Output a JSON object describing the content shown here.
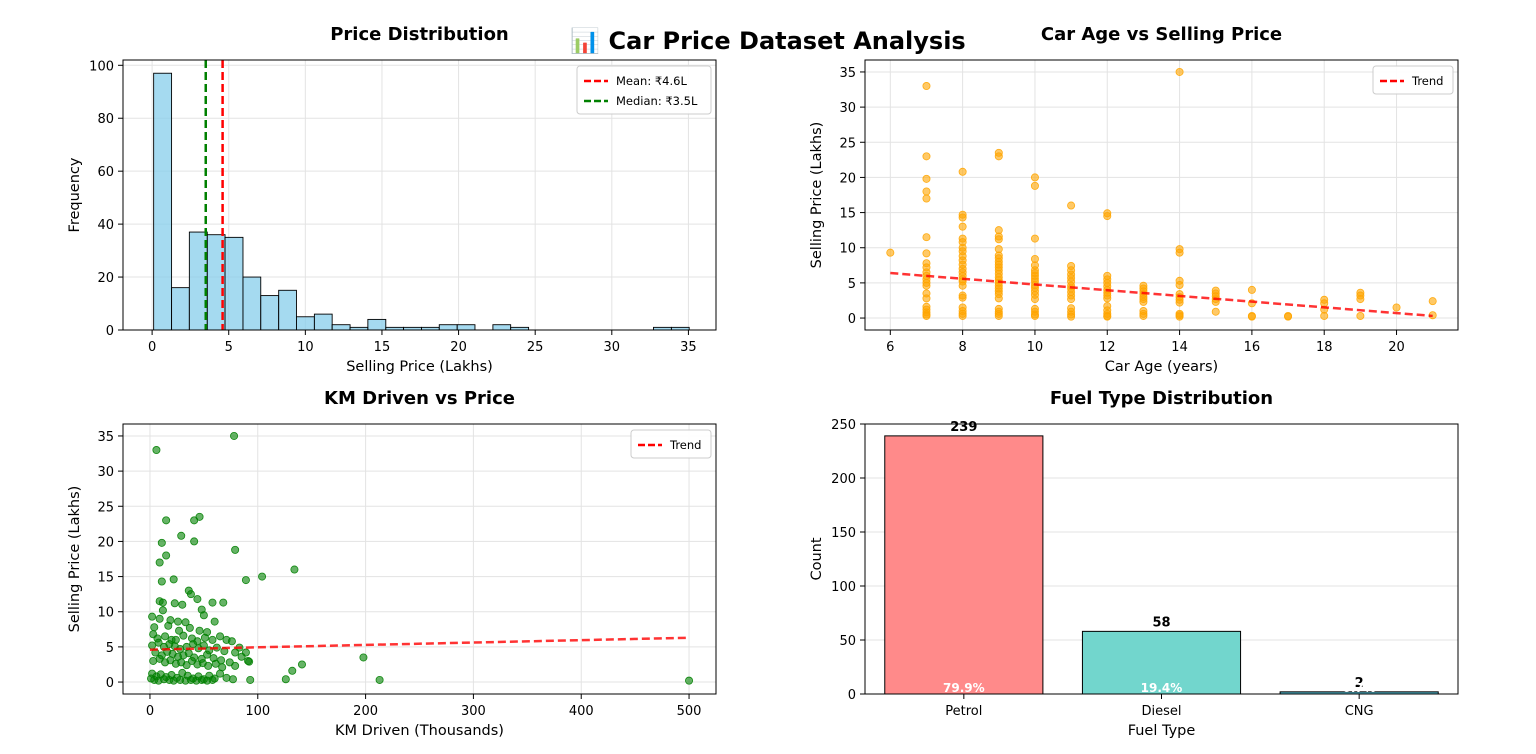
{
  "suptitle": "📊 Car Price Dataset Analysis",
  "chart_data": [
    {
      "type": "histogram",
      "title": "Price Distribution",
      "xlabel": "Selling Price (Lakhs)",
      "ylabel": "Frequency",
      "xlim": [
        -1.9,
        36.8
      ],
      "ylim": [
        0,
        102
      ],
      "xticks": [
        0,
        5,
        10,
        15,
        20,
        25,
        30,
        35
      ],
      "yticks": [
        0,
        20,
        40,
        60,
        80,
        100
      ],
      "bin_edges": [
        0.1,
        1.27,
        2.43,
        3.6,
        4.76,
        5.93,
        7.09,
        8.26,
        9.42,
        10.59,
        11.75,
        12.92,
        14.08,
        15.25,
        16.41,
        17.58,
        18.74,
        19.91,
        21.07,
        22.24,
        23.4,
        24.57,
        25.73,
        26.9,
        28.06,
        29.23,
        30.39,
        31.56,
        32.72,
        33.89,
        35.05
      ],
      "counts": [
        97,
        16,
        37,
        36,
        35,
        20,
        13,
        15,
        5,
        6,
        2,
        1,
        4,
        1,
        1,
        1,
        2,
        2,
        0,
        2,
        1,
        0,
        0,
        0,
        0,
        0,
        0,
        0,
        1,
        1
      ],
      "bar_color": "#87ceeb",
      "vlines": [
        {
          "label": "Mean: ₹4.6L",
          "x": 4.6,
          "color": "#ff0000"
        },
        {
          "label": "Median: ₹3.5L",
          "x": 3.5,
          "color": "#008000"
        }
      ],
      "legend_position": "upper right",
      "grid": true
    },
    {
      "type": "scatter",
      "title": "Car Age vs Selling Price",
      "xlabel": "Car Age (years)",
      "ylabel": "Selling Price (Lakhs)",
      "xlim": [
        5.3,
        21.7
      ],
      "ylim": [
        -1.7,
        36.7
      ],
      "xticks": [
        6,
        8,
        10,
        12,
        14,
        16,
        18,
        20
      ],
      "yticks": [
        0,
        5,
        10,
        15,
        20,
        25,
        30,
        35
      ],
      "point_color": "#ffa500",
      "points": [
        [
          6,
          9.3
        ],
        [
          7,
          33
        ],
        [
          7,
          23
        ],
        [
          7,
          19.8
        ],
        [
          7,
          18
        ],
        [
          7,
          17
        ],
        [
          7,
          11.5
        ],
        [
          7,
          9.2
        ],
        [
          7,
          7.8
        ],
        [
          7,
          7.2
        ],
        [
          7,
          6.5
        ],
        [
          7,
          6
        ],
        [
          7,
          5.5
        ],
        [
          7,
          5
        ],
        [
          7,
          4.6
        ],
        [
          7,
          3.5
        ],
        [
          7,
          2.8
        ],
        [
          7,
          1.6
        ],
        [
          7,
          1.2
        ],
        [
          7,
          0.8
        ],
        [
          7,
          0.5
        ],
        [
          7,
          0.3
        ],
        [
          8,
          20.8
        ],
        [
          8,
          14.7
        ],
        [
          8,
          14.3
        ],
        [
          8,
          13
        ],
        [
          8,
          11.3
        ],
        [
          8,
          10.8
        ],
        [
          8,
          10
        ],
        [
          8,
          9.5
        ],
        [
          8,
          8.8
        ],
        [
          8,
          8.2
        ],
        [
          8,
          7.6
        ],
        [
          8,
          7
        ],
        [
          8,
          6.5
        ],
        [
          8,
          6
        ],
        [
          8,
          5.5
        ],
        [
          8,
          5.2
        ],
        [
          8,
          4.6
        ],
        [
          8,
          3.2
        ],
        [
          8,
          2.9
        ],
        [
          8,
          1.5
        ],
        [
          8,
          1
        ],
        [
          8,
          0.6
        ],
        [
          8,
          0.3
        ],
        [
          9,
          23.5
        ],
        [
          9,
          23
        ],
        [
          9,
          12.5
        ],
        [
          9,
          11.6
        ],
        [
          9,
          11.2
        ],
        [
          9,
          9.8
        ],
        [
          9,
          8.9
        ],
        [
          9,
          8.5
        ],
        [
          9,
          8
        ],
        [
          9,
          7.6
        ],
        [
          9,
          7.2
        ],
        [
          9,
          6.8
        ],
        [
          9,
          6.3
        ],
        [
          9,
          5.8
        ],
        [
          9,
          5.4
        ],
        [
          9,
          5
        ],
        [
          9,
          4.6
        ],
        [
          9,
          4.2
        ],
        [
          9,
          3.8
        ],
        [
          9,
          3.4
        ],
        [
          9,
          2.8
        ],
        [
          9,
          1.3
        ],
        [
          9,
          0.9
        ],
        [
          9,
          0.6
        ],
        [
          9,
          0.3
        ],
        [
          10,
          20
        ],
        [
          10,
          18.8
        ],
        [
          10,
          11.3
        ],
        [
          10,
          8.4
        ],
        [
          10,
          7.5
        ],
        [
          10,
          6.8
        ],
        [
          10,
          6.4
        ],
        [
          10,
          6
        ],
        [
          10,
          5.6
        ],
        [
          10,
          5.2
        ],
        [
          10,
          4.7
        ],
        [
          10,
          4.3
        ],
        [
          10,
          3.8
        ],
        [
          10,
          3.3
        ],
        [
          10,
          2.7
        ],
        [
          10,
          1.3
        ],
        [
          10,
          0.9
        ],
        [
          10,
          0.5
        ],
        [
          10,
          0.3
        ],
        [
          11,
          16
        ],
        [
          11,
          7.4
        ],
        [
          11,
          6.8
        ],
        [
          11,
          6.2
        ],
        [
          11,
          5.7
        ],
        [
          11,
          5.2
        ],
        [
          11,
          4.6
        ],
        [
          11,
          4.2
        ],
        [
          11,
          3.7
        ],
        [
          11,
          3.2
        ],
        [
          11,
          2.7
        ],
        [
          11,
          1.4
        ],
        [
          11,
          0.9
        ],
        [
          11,
          0.5
        ],
        [
          11,
          0.2
        ],
        [
          12,
          14.9
        ],
        [
          12,
          14.5
        ],
        [
          12,
          6
        ],
        [
          12,
          5.5
        ],
        [
          12,
          5
        ],
        [
          12,
          4.5
        ],
        [
          12,
          4
        ],
        [
          12,
          3.6
        ],
        [
          12,
          3.2
        ],
        [
          12,
          2.8
        ],
        [
          12,
          1.7
        ],
        [
          12,
          1.1
        ],
        [
          12,
          0.6
        ],
        [
          12,
          0.3
        ],
        [
          12,
          0.2
        ],
        [
          13,
          4.6
        ],
        [
          13,
          4.2
        ],
        [
          13,
          3.8
        ],
        [
          13,
          3.4
        ],
        [
          13,
          3
        ],
        [
          13,
          2.7
        ],
        [
          13,
          2.3
        ],
        [
          13,
          1
        ],
        [
          13,
          0.6
        ],
        [
          13,
          0.3
        ],
        [
          14,
          35
        ],
        [
          14,
          9.8
        ],
        [
          14,
          9.3
        ],
        [
          14,
          5.3
        ],
        [
          14,
          4.7
        ],
        [
          14,
          3.4
        ],
        [
          14,
          3
        ],
        [
          14,
          2.6
        ],
        [
          14,
          2.2
        ],
        [
          14,
          0.6
        ],
        [
          14,
          0.4
        ],
        [
          14,
          0.2
        ],
        [
          15,
          3.9
        ],
        [
          15,
          3.5
        ],
        [
          15,
          3.1
        ],
        [
          15,
          2.7
        ],
        [
          15,
          2.3
        ],
        [
          15,
          0.9
        ],
        [
          16,
          4
        ],
        [
          16,
          2.1
        ],
        [
          16,
          0.3
        ],
        [
          16,
          0.2
        ],
        [
          17,
          0.3
        ],
        [
          17,
          0.2
        ],
        [
          18,
          2.6
        ],
        [
          18,
          2.1
        ],
        [
          18,
          1.2
        ],
        [
          18,
          0.3
        ],
        [
          19,
          3.6
        ],
        [
          19,
          3.2
        ],
        [
          19,
          2.7
        ],
        [
          19,
          0.3
        ],
        [
          20,
          1.5
        ],
        [
          21,
          2.4
        ],
        [
          21,
          0.4
        ]
      ],
      "trend": {
        "label": "Trend",
        "x": [
          6,
          21
        ],
        "y": [
          6.4,
          0.3
        ],
        "color": "#ff0000"
      },
      "legend_position": "upper right",
      "grid": true
    },
    {
      "type": "scatter",
      "title": "KM Driven vs Price",
      "xlabel": "KM Driven (Thousands)",
      "ylabel": "Selling Price (Lakhs)",
      "xlim": [
        -25,
        525
      ],
      "ylim": [
        -1.7,
        36.7
      ],
      "xticks": [
        0,
        100,
        200,
        300,
        400,
        500
      ],
      "yticks": [
        0,
        5,
        10,
        15,
        20,
        25,
        30,
        35
      ],
      "point_color": "#008000",
      "points": [
        [
          78,
          35
        ],
        [
          6,
          33
        ],
        [
          46,
          23.5
        ],
        [
          15,
          23
        ],
        [
          41,
          23
        ],
        [
          29,
          20.8
        ],
        [
          11,
          19.8
        ],
        [
          41,
          20
        ],
        [
          79,
          18.8
        ],
        [
          15,
          18
        ],
        [
          9,
          17
        ],
        [
          134,
          16
        ],
        [
          104,
          15
        ],
        [
          11,
          14.3
        ],
        [
          22,
          14.6
        ],
        [
          89,
          14.5
        ],
        [
          36,
          13
        ],
        [
          38,
          12.5
        ],
        [
          9,
          11.5
        ],
        [
          12,
          11.3
        ],
        [
          23,
          11.2
        ],
        [
          30,
          11
        ],
        [
          44,
          11.8
        ],
        [
          58,
          11.3
        ],
        [
          68,
          11.3
        ],
        [
          12,
          10.2
        ],
        [
          48,
          10.3
        ],
        [
          2,
          9.3
        ],
        [
          9,
          9
        ],
        [
          19,
          8.8
        ],
        [
          26,
          8.6
        ],
        [
          33,
          8.5
        ],
        [
          50,
          9.5
        ],
        [
          60,
          8.6
        ],
        [
          4,
          7.8
        ],
        [
          17,
          8
        ],
        [
          27,
          7.3
        ],
        [
          37,
          7.7
        ],
        [
          46,
          7.3
        ],
        [
          53,
          7.1
        ],
        [
          65,
          6.5
        ],
        [
          3,
          6.8
        ],
        [
          7,
          6.2
        ],
        [
          14,
          6.5
        ],
        [
          20,
          6
        ],
        [
          24,
          6
        ],
        [
          31,
          6.6
        ],
        [
          39,
          6.2
        ],
        [
          44,
          5.8
        ],
        [
          51,
          6.3
        ],
        [
          58,
          6
        ],
        [
          71,
          6
        ],
        [
          76,
          5.8
        ],
        [
          83,
          4.9
        ],
        [
          89,
          4.2
        ],
        [
          2,
          5.2
        ],
        [
          8,
          5.6
        ],
        [
          13,
          5
        ],
        [
          18,
          5.4
        ],
        [
          23,
          5.1
        ],
        [
          28,
          4.7
        ],
        [
          34,
          5
        ],
        [
          40,
          5.4
        ],
        [
          45,
          4.8
        ],
        [
          50,
          5.2
        ],
        [
          55,
          4.5
        ],
        [
          62,
          4.9
        ],
        [
          69,
          4.4
        ],
        [
          79,
          4.2
        ],
        [
          85,
          3.6
        ],
        [
          91,
          3
        ],
        [
          5,
          4.2
        ],
        [
          11,
          3.8
        ],
        [
          16,
          4.3
        ],
        [
          21,
          4
        ],
        [
          26,
          3.6
        ],
        [
          31,
          3.8
        ],
        [
          36,
          4.1
        ],
        [
          41,
          3.5
        ],
        [
          48,
          3.3
        ],
        [
          53,
          3.9
        ],
        [
          59,
          3.4
        ],
        [
          66,
          3.1
        ],
        [
          74,
          2.8
        ],
        [
          79,
          2.3
        ],
        [
          92,
          2.9
        ],
        [
          3,
          3
        ],
        [
          9,
          3.3
        ],
        [
          14,
          2.8
        ],
        [
          19,
          3.1
        ],
        [
          24,
          2.6
        ],
        [
          29,
          2.8
        ],
        [
          34,
          2.4
        ],
        [
          39,
          3
        ],
        [
          44,
          2.5
        ],
        [
          49,
          2.7
        ],
        [
          54,
          2.3
        ],
        [
          61,
          2.6
        ],
        [
          67,
          2.1
        ],
        [
          132,
          1.6
        ],
        [
          141,
          2.5
        ],
        [
          198,
          3.5
        ],
        [
          2,
          1.2
        ],
        [
          6,
          0.8
        ],
        [
          10,
          1.1
        ],
        [
          15,
          0.7
        ],
        [
          20,
          1
        ],
        [
          25,
          0.6
        ],
        [
          30,
          1.3
        ],
        [
          35,
          0.9
        ],
        [
          40,
          0.5
        ],
        [
          45,
          0.8
        ],
        [
          50,
          0.4
        ],
        [
          55,
          0.9
        ],
        [
          60,
          0.5
        ],
        [
          65,
          1.2
        ],
        [
          71,
          0.6
        ],
        [
          77,
          0.4
        ],
        [
          93,
          0.3
        ],
        [
          126,
          0.4
        ],
        [
          213,
          0.3
        ],
        [
          500,
          0.2
        ],
        [
          1,
          0.5
        ],
        [
          4,
          0.3
        ],
        [
          8,
          0.2
        ],
        [
          13,
          0.4
        ],
        [
          18,
          0.3
        ],
        [
          22,
          0.2
        ],
        [
          28,
          0.3
        ],
        [
          33,
          0.2
        ],
        [
          38,
          0.3
        ],
        [
          43,
          0.2
        ],
        [
          48,
          0.3
        ],
        [
          53,
          0.2
        ],
        [
          58,
          0.3
        ]
      ],
      "trend": {
        "label": "Trend",
        "x": [
          0,
          500
        ],
        "y": [
          4.6,
          6.3
        ],
        "color": "#ff0000"
      },
      "legend_position": "upper right",
      "grid": true
    },
    {
      "type": "bar",
      "title": "Fuel Type Distribution",
      "xlabel": "Fuel Type",
      "ylabel": "Count",
      "ylim": [
        0,
        250
      ],
      "yticks": [
        0,
        50,
        100,
        150,
        200,
        250
      ],
      "categories": [
        "Petrol",
        "Diesel",
        "CNG"
      ],
      "values": [
        239,
        58,
        2
      ],
      "value_labels": [
        "239",
        "58",
        "2"
      ],
      "percent_labels": [
        "79.9%",
        "19.4%",
        "0.7%"
      ],
      "colors": [
        "#ff8a8a",
        "#72d6cd",
        "#4fb3c7"
      ],
      "grid": true
    }
  ]
}
